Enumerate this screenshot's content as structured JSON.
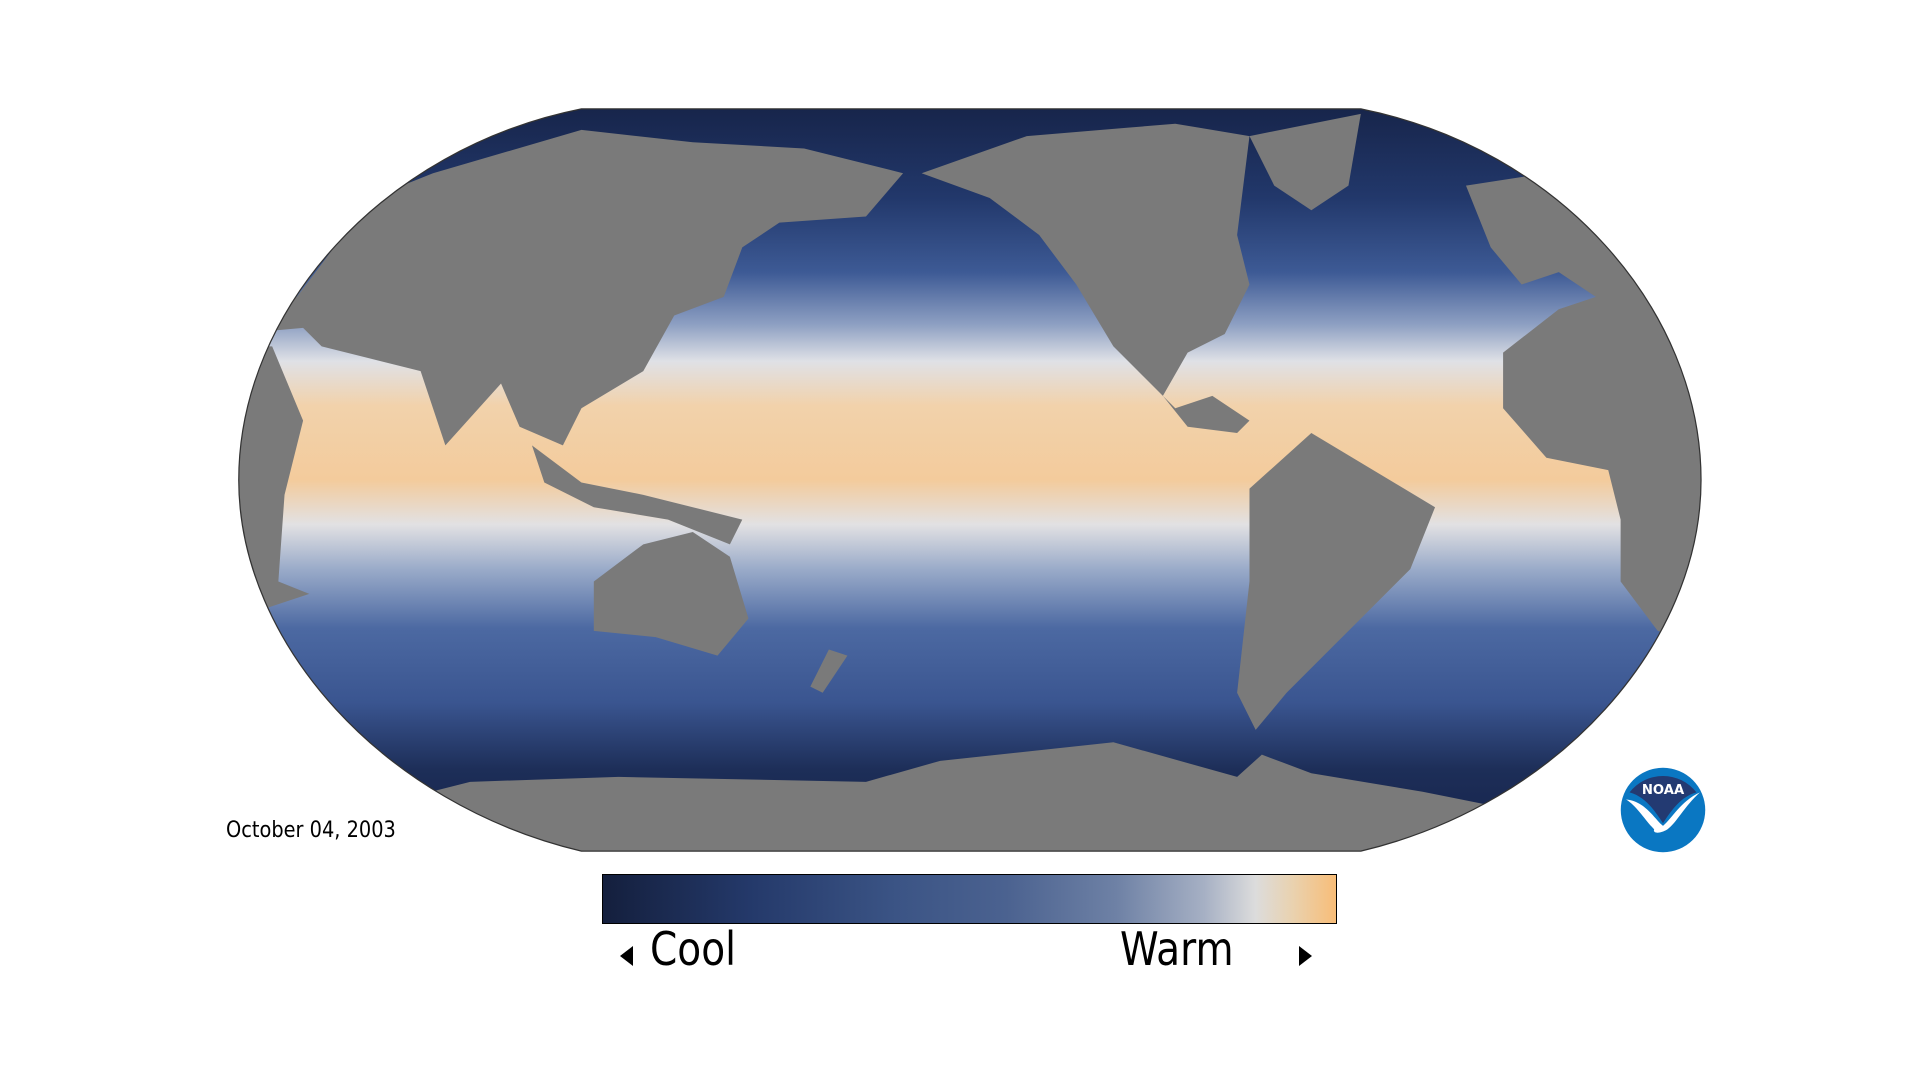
{
  "date": "October 04, 2003",
  "legend": {
    "low_label": "Cool",
    "high_label": "Warm"
  },
  "logo": {
    "text": "NOAA"
  },
  "colors": {
    "land": "#7a7a7a",
    "cool": "#141f3d",
    "neutral": "#dcdcdc",
    "warm": "#f8bd78",
    "noaa_dark": "#233a72",
    "noaa_light": "#0a77c2"
  }
}
